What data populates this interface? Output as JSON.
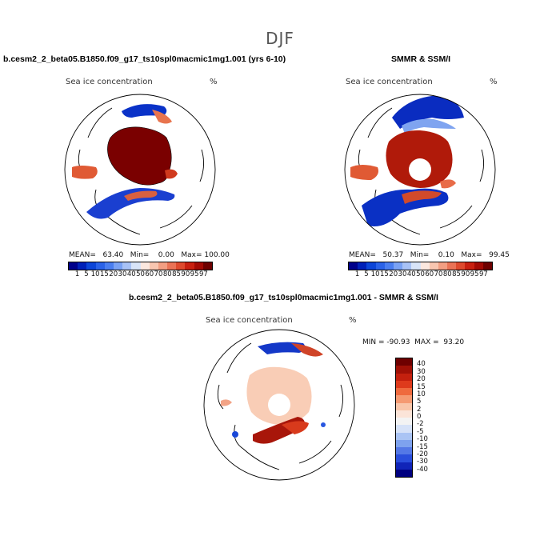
{
  "title": "DJF",
  "panel_left": {
    "heading": "b.cesm2_2_beta05.B1850.f09_g17_ts10spl0macmic1mg1.001 (yrs 6-10)",
    "field": "Sea ice concentration",
    "unit": "%",
    "stats": "MEAN=   63.40   Min=    0.00   Max= 100.00"
  },
  "panel_right": {
    "heading": "SMMR & SSM/I",
    "field": "Sea ice concentration",
    "unit": "%",
    "stats": "MEAN=   50.37   Min=    0.10   Max=   99.45"
  },
  "colorbar_conc": {
    "labels": [
      "1",
      "5",
      "10",
      "15",
      "20",
      "30",
      "40",
      "50",
      "60",
      "70",
      "80",
      "85",
      "90",
      "95",
      "97"
    ],
    "colors": [
      "#00008b",
      "#0020b8",
      "#0c45d8",
      "#2a62e8",
      "#4a7ef0",
      "#7aa2f4",
      "#a8c2f6",
      "#d8e4f8",
      "#fbe8df",
      "#f8c6b0",
      "#f29e82",
      "#ea7356",
      "#de4a2e",
      "#c82010",
      "#a20a04",
      "#6e0000"
    ]
  },
  "panel_diff": {
    "heading": "b.cesm2_2_beta05.B1850.f09_g17_ts10spl0macmic1mg1.001 - SMMR & SSM/I",
    "field": "Sea ice concentration",
    "unit": "%",
    "stats": "MIN = -90.93  MAX =  93.20"
  },
  "colorbar_diff": {
    "labels": [
      "40",
      "30",
      "20",
      "15",
      "10",
      "5",
      "2",
      "0",
      "-2",
      "-5",
      "-10",
      "-15",
      "-20",
      "-30",
      "-40"
    ],
    "colors": [
      "#6e0000",
      "#a01006",
      "#c4200e",
      "#de3a1c",
      "#ef6a3e",
      "#f59a72",
      "#f9c6aa",
      "#fbe4d8",
      "#f3f3f3",
      "#d6e2f8",
      "#aac4f4",
      "#7ea2ee",
      "#5478e6",
      "#2a4edc",
      "#1024b8",
      "#000080"
    ]
  }
}
